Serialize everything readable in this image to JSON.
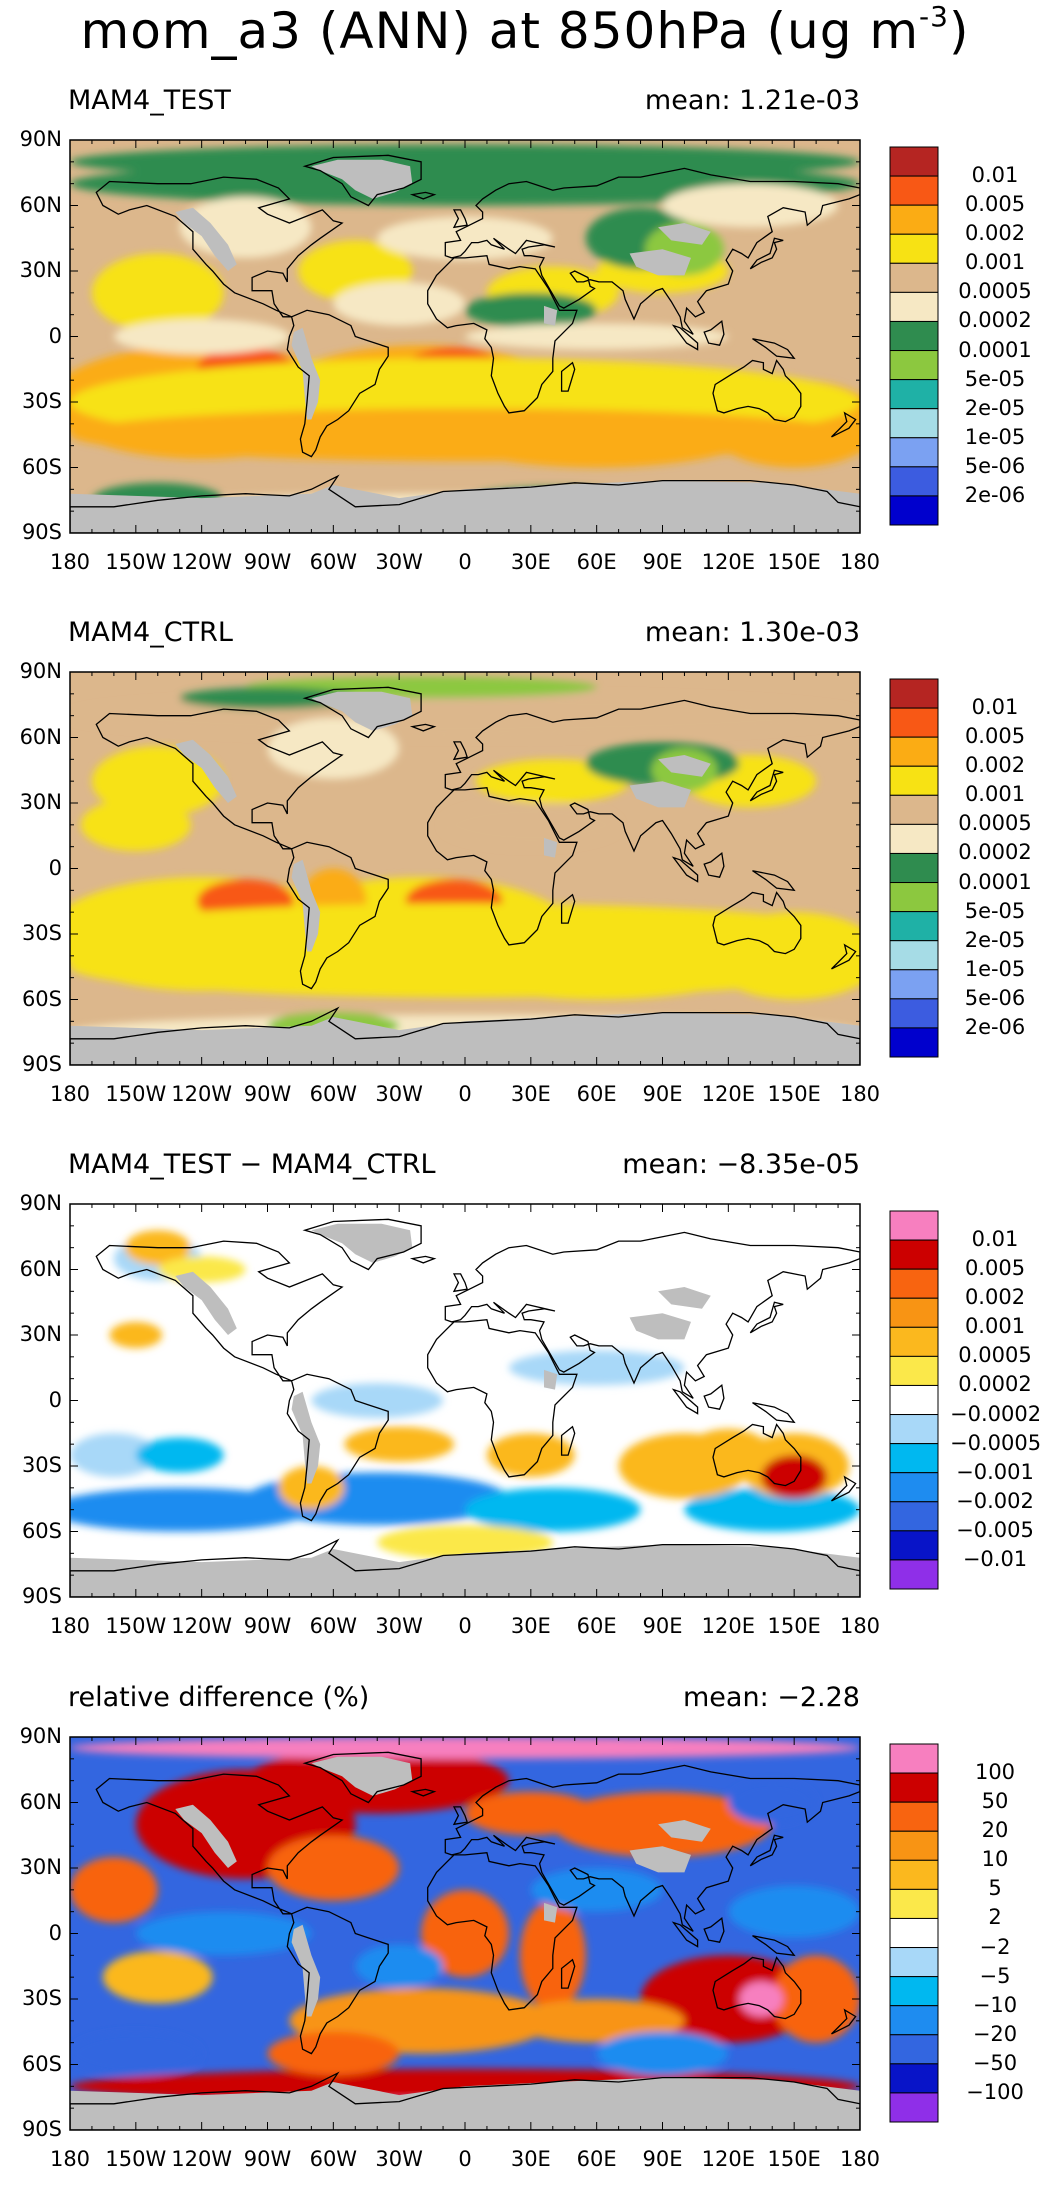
{
  "figure": {
    "title_main": "mom_a3 (ANN) at 850hPa (ug m",
    "title_exp": "-3",
    "title_close": ")"
  },
  "axes": {
    "lat_labels": [
      "90N",
      "60N",
      "30N",
      "0",
      "30S",
      "60S",
      "90S"
    ],
    "lon_labels": [
      "180",
      "150W",
      "120W",
      "90W",
      "60W",
      "30W",
      "0",
      "30E",
      "60E",
      "90E",
      "120E",
      "150E",
      "180"
    ]
  },
  "colors": {
    "land_missing": "#bebebe",
    "abs_scale": [
      "#0000cd",
      "#3c5ce0",
      "#7ba1f2",
      "#a6dce6",
      "#1fb1a6",
      "#8cc83f",
      "#2f8c4f",
      "#f6e8c4",
      "#dcb78c",
      "#f7e214",
      "#fbac14",
      "#f85815",
      "#b52522"
    ],
    "diff_scale": [
      "#8f2fe8",
      "#0814c8",
      "#3366e0",
      "#1e8cf0",
      "#00b8f0",
      "#a8d8f8",
      "#ffffff",
      "#fbe84a",
      "#fbb81e",
      "#f89414",
      "#f86410",
      "#cc0000",
      "#f77fbf"
    ]
  },
  "chart_data": [
    {
      "type": "heatmap",
      "id": "test",
      "title": "MAM4_TEST",
      "mean_text": "mean:  1.21e-03",
      "mean": 0.00121,
      "xlim": [
        -180,
        180
      ],
      "ylim": [
        -90,
        90
      ],
      "colorbar_levels": [
        "0.01",
        "0.005",
        "0.002",
        "0.001",
        "0.0005",
        "0.0002",
        "0.0001",
        "5e-05",
        "2e-05",
        "1e-05",
        "5e-06",
        "2e-06"
      ]
    },
    {
      "type": "heatmap",
      "id": "ctrl",
      "title": "MAM4_CTRL",
      "mean_text": "mean:  1.30e-03",
      "mean": 0.0013,
      "xlim": [
        -180,
        180
      ],
      "ylim": [
        -90,
        90
      ],
      "colorbar_levels": [
        "0.01",
        "0.005",
        "0.002",
        "0.001",
        "0.0005",
        "0.0002",
        "0.0001",
        "5e-05",
        "2e-05",
        "1e-05",
        "5e-06",
        "2e-06"
      ]
    },
    {
      "type": "heatmap",
      "id": "diff",
      "title": "MAM4_TEST − MAM4_CTRL",
      "mean_text": "mean: −8.35e-05",
      "mean": -8.35e-05,
      "xlim": [
        -180,
        180
      ],
      "ylim": [
        -90,
        90
      ],
      "colorbar_levels": [
        "0.01",
        "0.005",
        "0.002",
        "0.001",
        "0.0005",
        "0.0002",
        "−0.0002",
        "−0.0005",
        "−0.001",
        "−0.002",
        "−0.005",
        "−0.01"
      ]
    },
    {
      "type": "heatmap",
      "id": "rel",
      "title": "relative difference (%)",
      "mean_text": "mean:  −2.28",
      "mean": -2.28,
      "xlim": [
        -180,
        180
      ],
      "ylim": [
        -90,
        90
      ],
      "colorbar_levels": [
        "100",
        "50",
        "20",
        "10",
        "5",
        "2",
        "−2",
        "−5",
        "−10",
        "−20",
        "−50",
        "−100"
      ]
    }
  ]
}
